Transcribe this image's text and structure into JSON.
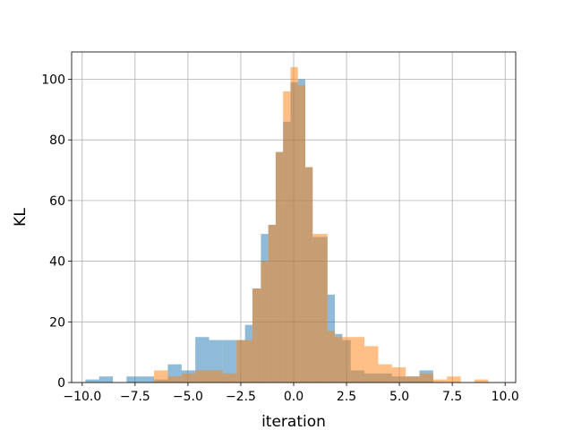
{
  "chart_data": {
    "type": "bar",
    "subtype": "overlapping-histogram",
    "title": "",
    "xlabel": "iteration",
    "ylabel": "KL",
    "xlim": [
      -10.5,
      10.5
    ],
    "ylim": [
      0,
      109
    ],
    "xticks": [
      -10.0,
      -7.5,
      -5.0,
      -2.5,
      0.0,
      2.5,
      5.0,
      7.5,
      10.0
    ],
    "xtick_labels": [
      "−10.0",
      "−7.5",
      "−5.0",
      "−2.5",
      "0.0",
      "2.5",
      "5.0",
      "7.5",
      "10.0"
    ],
    "yticks": [
      0,
      20,
      40,
      60,
      80,
      100
    ],
    "ytick_labels": [
      "0",
      "20",
      "40",
      "60",
      "80",
      "100"
    ],
    "grid": true,
    "legend": false,
    "series": [
      {
        "color": "#1f77b4",
        "alpha": 0.5,
        "bins": [
          {
            "x0": -9.85,
            "x1": -9.2,
            "count": 1
          },
          {
            "x0": -9.2,
            "x1": -8.55,
            "count": 2
          },
          {
            "x0": -7.9,
            "x1": -7.25,
            "count": 2
          },
          {
            "x0": -7.25,
            "x1": -6.6,
            "count": 2
          },
          {
            "x0": -6.6,
            "x1": -5.95,
            "count": 1
          },
          {
            "x0": -5.95,
            "x1": -5.3,
            "count": 6
          },
          {
            "x0": -5.3,
            "x1": -4.65,
            "count": 4
          },
          {
            "x0": -4.65,
            "x1": -4.0,
            "count": 15
          },
          {
            "x0": -4.0,
            "x1": -3.35,
            "count": 14
          },
          {
            "x0": -3.35,
            "x1": -2.7,
            "count": 14
          },
          {
            "x0": -2.7,
            "x1": -2.3,
            "count": 14
          },
          {
            "x0": -2.3,
            "x1": -1.95,
            "count": 19
          },
          {
            "x0": -1.95,
            "x1": -1.55,
            "count": 31
          },
          {
            "x0": -1.55,
            "x1": -1.2,
            "count": 49
          },
          {
            "x0": -1.2,
            "x1": -0.85,
            "count": 52
          },
          {
            "x0": -0.85,
            "x1": -0.5,
            "count": 76
          },
          {
            "x0": -0.5,
            "x1": -0.15,
            "count": 86
          },
          {
            "x0": -0.15,
            "x1": 0.2,
            "count": 99
          },
          {
            "x0": 0.2,
            "x1": 0.55,
            "count": 100
          },
          {
            "x0": 0.55,
            "x1": 0.9,
            "count": 71
          },
          {
            "x0": 0.9,
            "x1": 1.25,
            "count": 48
          },
          {
            "x0": 1.25,
            "x1": 1.6,
            "count": 48
          },
          {
            "x0": 1.6,
            "x1": 1.95,
            "count": 29
          },
          {
            "x0": 1.95,
            "x1": 2.3,
            "count": 16
          },
          {
            "x0": 2.3,
            "x1": 2.7,
            "count": 14
          },
          {
            "x0": 2.7,
            "x1": 3.35,
            "count": 4
          },
          {
            "x0": 3.35,
            "x1": 4.0,
            "count": 3
          },
          {
            "x0": 4.0,
            "x1": 4.65,
            "count": 3
          },
          {
            "x0": 4.65,
            "x1": 5.3,
            "count": 2
          },
          {
            "x0": 5.3,
            "x1": 5.95,
            "count": 2
          },
          {
            "x0": 5.95,
            "x1": 6.6,
            "count": 4
          }
        ]
      },
      {
        "color": "#ff7f0e",
        "alpha": 0.5,
        "bins": [
          {
            "x0": -6.6,
            "x1": -5.95,
            "count": 4
          },
          {
            "x0": -5.95,
            "x1": -5.3,
            "count": 2
          },
          {
            "x0": -5.3,
            "x1": -4.65,
            "count": 3
          },
          {
            "x0": -4.65,
            "x1": -4.0,
            "count": 4
          },
          {
            "x0": -4.0,
            "x1": -3.35,
            "count": 4
          },
          {
            "x0": -3.35,
            "x1": -2.7,
            "count": 3
          },
          {
            "x0": -2.7,
            "x1": -2.3,
            "count": 14
          },
          {
            "x0": -2.3,
            "x1": -1.95,
            "count": 14
          },
          {
            "x0": -1.95,
            "x1": -1.55,
            "count": 31
          },
          {
            "x0": -1.55,
            "x1": -1.2,
            "count": 40
          },
          {
            "x0": -1.2,
            "x1": -0.85,
            "count": 52
          },
          {
            "x0": -0.85,
            "x1": -0.5,
            "count": 76
          },
          {
            "x0": -0.5,
            "x1": -0.15,
            "count": 96
          },
          {
            "x0": -0.15,
            "x1": 0.2,
            "count": 104
          },
          {
            "x0": 0.2,
            "x1": 0.55,
            "count": 98
          },
          {
            "x0": 0.55,
            "x1": 0.9,
            "count": 71
          },
          {
            "x0": 0.9,
            "x1": 1.25,
            "count": 49
          },
          {
            "x0": 1.25,
            "x1": 1.6,
            "count": 49
          },
          {
            "x0": 1.6,
            "x1": 1.95,
            "count": 17
          },
          {
            "x0": 1.95,
            "x1": 2.3,
            "count": 15
          },
          {
            "x0": 2.3,
            "x1": 2.7,
            "count": 15
          },
          {
            "x0": 2.7,
            "x1": 3.35,
            "count": 15
          },
          {
            "x0": 3.35,
            "x1": 4.0,
            "count": 12
          },
          {
            "x0": 4.0,
            "x1": 4.65,
            "count": 6
          },
          {
            "x0": 4.65,
            "x1": 5.3,
            "count": 5
          },
          {
            "x0": 5.3,
            "x1": 5.95,
            "count": 2
          },
          {
            "x0": 5.95,
            "x1": 6.6,
            "count": 3
          },
          {
            "x0": 6.6,
            "x1": 7.25,
            "count": 1
          },
          {
            "x0": 7.25,
            "x1": 7.9,
            "count": 2
          },
          {
            "x0": 8.55,
            "x1": 9.2,
            "count": 1
          }
        ]
      }
    ]
  }
}
